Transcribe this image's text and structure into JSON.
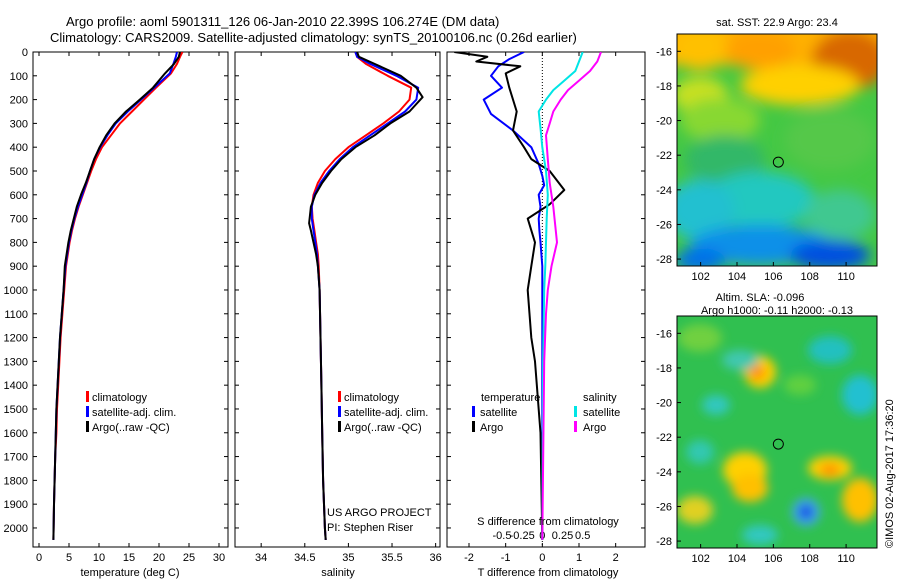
{
  "header": {
    "line1": "Argo profile: aoml 5901311_126 06-Jan-2010 22.399S 106.274E (DM data)",
    "line2": "Climatology: CARS2009. Satellite-adjusted climatology: synTS_20100106.nc (0.26d earlier)"
  },
  "colors": {
    "climatology": "#ff0000",
    "satellite": "#0000ff",
    "argo": "#000000",
    "sal_satellite": "#00e5e5",
    "sal_argo": "#ff00ff"
  },
  "depth_axis": {
    "ylim": [
      0,
      2080
    ],
    "ticks": [
      0,
      100,
      200,
      300,
      400,
      500,
      600,
      700,
      800,
      900,
      1000,
      1100,
      1200,
      1300,
      1400,
      1500,
      1600,
      1700,
      1800,
      1900,
      2000
    ]
  },
  "chart_data": [
    {
      "type": "line",
      "xlabel": "temperature (deg C)",
      "xlim": [
        -1,
        31.5
      ],
      "xticks": [
        0,
        5,
        10,
        15,
        20,
        25,
        30
      ],
      "ylim": [
        0,
        2080
      ],
      "legend": {
        "placement": "bottom-center",
        "entries": [
          "climatology",
          "satellite-adj. clim.",
          "Argo(..raw -QC)"
        ]
      },
      "series": [
        {
          "name": "climatology",
          "color": "#ff0000",
          "x": [
            23.9,
            23.5,
            23.0,
            22.0,
            19.5,
            17.5,
            15.5,
            13.5,
            12.0,
            10.5,
            9.5,
            8.7,
            8.0,
            7.3,
            6.6,
            6.0,
            5.5,
            5.1,
            4.8,
            4.5,
            4.2,
            3.9,
            3.6,
            3.4,
            3.2,
            3.0,
            2.9,
            2.7,
            2.6,
            2.5,
            2.4
          ],
          "y": [
            0,
            20,
            50,
            90,
            150,
            200,
            250,
            300,
            350,
            400,
            450,
            500,
            550,
            600,
            650,
            700,
            750,
            800,
            850,
            900,
            1000,
            1100,
            1200,
            1300,
            1400,
            1500,
            1600,
            1700,
            1800,
            1900,
            2050
          ]
        },
        {
          "name": "satellite-adj. clim.",
          "color": "#0000ff",
          "x": [
            23.0,
            22.8,
            22.4,
            21.8,
            19.2,
            17.0,
            14.8,
            12.8,
            11.4,
            10.2,
            9.2,
            8.5,
            7.9,
            7.2,
            6.5,
            5.9,
            5.4,
            5.0,
            4.7,
            4.4,
            4.1,
            3.8,
            3.5,
            3.3,
            3.1,
            2.9,
            2.8,
            2.7,
            2.6,
            2.5,
            2.4
          ],
          "y": [
            0,
            20,
            50,
            90,
            150,
            200,
            250,
            300,
            350,
            400,
            450,
            500,
            550,
            600,
            650,
            700,
            750,
            800,
            850,
            900,
            1000,
            1100,
            1200,
            1300,
            1400,
            1500,
            1600,
            1700,
            1800,
            1900,
            2050
          ]
        },
        {
          "name": "Argo(..raw -QC)",
          "color": "#000000",
          "x": [
            23.5,
            23.3,
            22.5,
            21.0,
            19.0,
            16.8,
            14.5,
            12.6,
            11.2,
            10.1,
            9.2,
            8.5,
            7.8,
            7.0,
            6.3,
            5.8,
            5.3,
            4.9,
            4.6,
            4.3,
            4.1,
            3.8,
            3.5,
            3.3,
            3.1,
            2.9,
            2.8,
            2.7,
            2.6,
            2.5,
            2.4
          ],
          "y": [
            0,
            20,
            50,
            90,
            150,
            200,
            250,
            300,
            350,
            400,
            450,
            500,
            550,
            600,
            650,
            700,
            750,
            800,
            850,
            900,
            1000,
            1100,
            1200,
            1300,
            1400,
            1500,
            1600,
            1700,
            1800,
            1900,
            2050
          ]
        }
      ]
    },
    {
      "type": "line",
      "xlabel": "salinity",
      "xlim": [
        33.7,
        36.05
      ],
      "xticks": [
        34,
        34.5,
        35,
        35.5,
        36
      ],
      "ylim": [
        0,
        2080
      ],
      "legend": {
        "placement": "bottom-center",
        "entries": [
          "climatology",
          "satellite-adj. clim.",
          "Argo(..raw -QC)"
        ]
      },
      "annotation": [
        "US ARGO PROJECT",
        "PI: Stephen Riser"
      ],
      "series": [
        {
          "name": "climatology",
          "color": "#ff0000",
          "x": [
            35.08,
            35.1,
            35.2,
            35.45,
            35.72,
            35.7,
            35.58,
            35.4,
            35.2,
            35.0,
            34.85,
            34.73,
            34.65,
            34.6,
            34.58,
            34.59,
            34.61,
            34.63,
            34.65,
            34.66,
            34.67,
            34.68,
            34.69,
            34.7,
            34.71,
            34.72,
            34.73,
            34.74
          ],
          "y": [
            0,
            20,
            50,
            100,
            150,
            200,
            250,
            300,
            350,
            400,
            450,
            500,
            550,
            600,
            650,
            700,
            750,
            800,
            850,
            900,
            1000,
            1200,
            1400,
            1600,
            1800,
            1900,
            2000,
            2050
          ]
        },
        {
          "name": "satellite-adj. clim.",
          "color": "#0000ff",
          "x": [
            35.08,
            35.1,
            35.25,
            35.55,
            35.8,
            35.78,
            35.65,
            35.45,
            35.25,
            35.05,
            34.9,
            34.78,
            34.68,
            34.61,
            34.58,
            34.58,
            34.6,
            34.62,
            34.64,
            34.65,
            34.67,
            34.68,
            34.69,
            34.7,
            34.71,
            34.72,
            34.73,
            34.74
          ],
          "y": [
            0,
            20,
            50,
            100,
            150,
            200,
            250,
            300,
            350,
            400,
            450,
            500,
            550,
            600,
            650,
            700,
            750,
            800,
            850,
            900,
            1000,
            1200,
            1400,
            1600,
            1800,
            1900,
            2000,
            2050
          ]
        },
        {
          "name": "Argo(..raw -QC)",
          "color": "#000000",
          "x": [
            35.1,
            35.12,
            35.3,
            35.6,
            35.78,
            35.85,
            35.7,
            35.48,
            35.3,
            35.08,
            34.92,
            34.8,
            34.7,
            34.62,
            34.57,
            34.55,
            34.57,
            34.6,
            34.63,
            34.65,
            34.67,
            34.68,
            34.69,
            34.7,
            34.71,
            34.72,
            34.73,
            34.74
          ],
          "y": [
            0,
            20,
            50,
            100,
            150,
            190,
            250,
            300,
            350,
            400,
            450,
            500,
            550,
            600,
            650,
            720,
            750,
            800,
            850,
            900,
            1000,
            1200,
            1400,
            1600,
            1800,
            1900,
            2000,
            2050
          ]
        }
      ]
    },
    {
      "type": "line",
      "xlabel": "T difference from climatology",
      "xlabel_top": "S difference from climatology",
      "xlim": [
        -2.6,
        2.8
      ],
      "xticks": [
        -2,
        -1,
        0,
        1,
        2
      ],
      "xticks_top": [
        -0.5,
        -0.25,
        0,
        0.25,
        0.5
      ],
      "ylim": [
        0,
        2080
      ],
      "legend": {
        "placement": "bottom",
        "temperature_title": "temperature",
        "salinity_title": "salinity",
        "entries": [
          "satellite",
          "Argo",
          "satellite",
          "Argo"
        ]
      },
      "series": [
        {
          "name": "satellite",
          "color": "#0000ff",
          "x": [
            -0.5,
            -0.9,
            -1.2,
            -1.4,
            -1.1,
            -1.6,
            -1.4,
            -0.8,
            -0.3,
            -0.1,
            0.0,
            0.05,
            -0.1,
            -0.05,
            -0.1,
            -0.08,
            -0.05,
            0.0,
            0.0,
            0.0,
            0.0
          ],
          "y": [
            0,
            30,
            60,
            100,
            150,
            200,
            260,
            330,
            400,
            470,
            520,
            560,
            600,
            650,
            700,
            750,
            800,
            900,
            1200,
            1600,
            2050
          ]
        },
        {
          "name": "Argo",
          "color": "#000000",
          "x": [
            -2.4,
            -1.5,
            -1.8,
            -0.6,
            -1.0,
            -0.9,
            -0.7,
            -0.8,
            -0.5,
            -0.3,
            0.2,
            0.6,
            0.2,
            -0.4,
            -0.2,
            -0.3,
            -0.4,
            -0.35,
            -0.3,
            -0.2,
            -0.05,
            0.0
          ],
          "y": [
            0,
            20,
            40,
            60,
            90,
            150,
            250,
            330,
            400,
            450,
            500,
            580,
            640,
            700,
            800,
            900,
            1000,
            1100,
            1200,
            1300,
            1600,
            2050
          ]
        },
        {
          "name": "satellite",
          "color": "#00e5e5",
          "x": [
            1.1,
            1.0,
            0.9,
            0.6,
            0.3,
            0.1,
            -0.1,
            -0.05,
            0.0,
            0.1,
            0.15,
            0.12,
            0.1,
            0.08,
            0.05,
            0.02,
            0.0
          ],
          "y": [
            0,
            40,
            80,
            120,
            160,
            200,
            250,
            320,
            400,
            500,
            600,
            700,
            800,
            900,
            1000,
            1300,
            2050
          ]
        },
        {
          "name": "Argo",
          "color": "#ff00ff",
          "x": [
            1.6,
            1.5,
            1.3,
            1.0,
            0.7,
            0.5,
            0.3,
            0.2,
            0.1,
            0.15,
            0.2,
            0.3,
            0.4,
            0.25,
            0.15,
            0.1,
            0.05,
            0.0
          ],
          "y": [
            0,
            40,
            80,
            120,
            160,
            200,
            250,
            300,
            350,
            450,
            550,
            650,
            800,
            900,
            1000,
            1100,
            1300,
            2050
          ]
        }
      ]
    },
    {
      "type": "heatmap",
      "title": "sat. SST: 22.9  Argo: 23.4",
      "xlim": [
        100.7,
        111.7
      ],
      "ylim": [
        -28.4,
        -15
      ],
      "xticks": [
        102,
        104,
        106,
        108,
        110
      ],
      "yticks": [
        -16,
        -18,
        -20,
        -22,
        -24,
        -26,
        -28
      ],
      "marker": {
        "lon": 106.274,
        "lat": -22.399
      }
    },
    {
      "type": "heatmap",
      "title": "Altim. SLA: -0.096",
      "subtitle": "Argo h1000: -0.11  h2000: -0.13",
      "xlim": [
        100.7,
        111.7
      ],
      "ylim": [
        -28.4,
        -15
      ],
      "xticks": [
        102,
        104,
        106,
        108,
        110
      ],
      "yticks": [
        -16,
        -18,
        -20,
        -22,
        -24,
        -26,
        -28
      ],
      "marker": {
        "lon": 106.274,
        "lat": -22.399
      }
    }
  ],
  "footer_stamp": "©IMOS 02-Aug-2017 17:36:20"
}
